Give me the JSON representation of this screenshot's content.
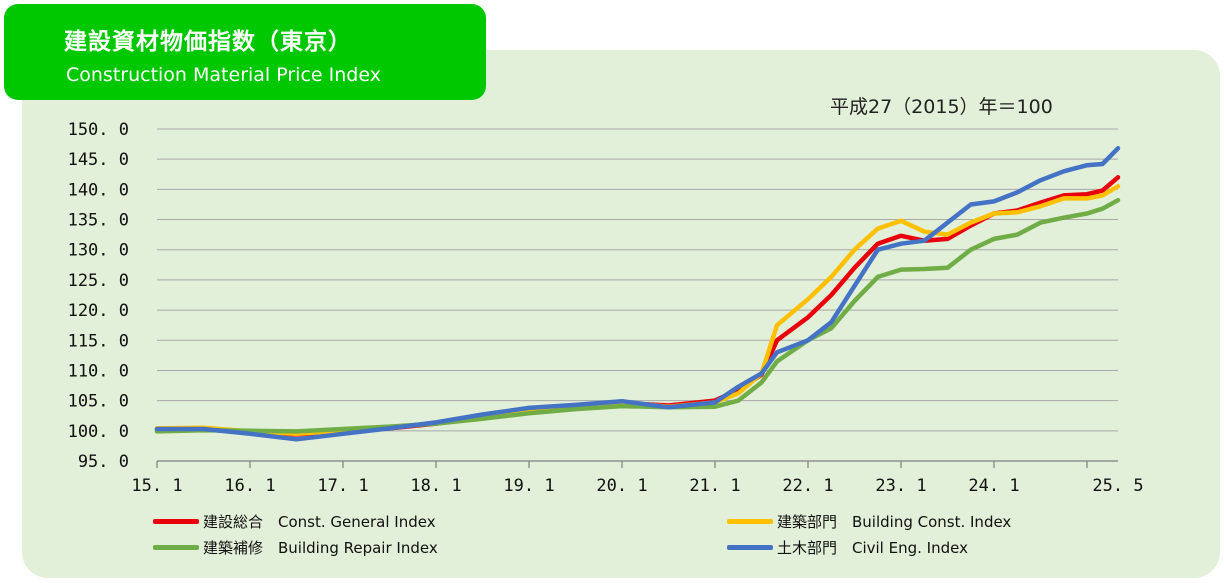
{
  "header": {
    "title_ja": "建設資材物価指数（東京）",
    "title_en": "Construction Material Price Index"
  },
  "base_note": "平成27（2015）年＝100",
  "colors": {
    "background_panel": "#e2efd9",
    "title_box": "#00c800",
    "series": [
      "#e8000b",
      "#ffc000",
      "#70ad47",
      "#4472c4"
    ]
  },
  "legend": {
    "items": [
      {
        "label": "建設総合　Const. General  Index"
      },
      {
        "label": "建築部門　Building Const. Index"
      },
      {
        "label": "建築補修　Building Repair Index"
      },
      {
        "label": "土木部門　Civil Eng. Index"
      }
    ]
  },
  "chart_data": {
    "type": "line",
    "title": "建設資材物価指数（東京）",
    "subtitle": "Construction Material Price Index",
    "xlabel": "",
    "ylabel": "",
    "ylim": [
      95.0,
      150.0
    ],
    "y_ticks": [
      "150.0",
      "145.0",
      "140.0",
      "135.0",
      "130.0",
      "125.0",
      "120.0",
      "115.0",
      "110.0",
      "105.0",
      "100.0",
      "95.0"
    ],
    "x_ticks": [
      "15.1",
      "16.1",
      "17.1",
      "18.1",
      "19.1",
      "20.1",
      "21.1",
      "22.1",
      "23.1",
      "24.1",
      "25.5"
    ],
    "grid": true,
    "legend_position": "bottom",
    "x": [
      "15.1",
      "15.7",
      "16.1",
      "16.7",
      "17.1",
      "17.7",
      "18.1",
      "18.7",
      "19.1",
      "19.7",
      "20.1",
      "20.7",
      "21.1",
      "21.4",
      "21.7",
      "21.9",
      "22.1",
      "22.4",
      "22.7",
      "22.10",
      "23.1",
      "23.4",
      "23.7",
      "23.10",
      "24.1",
      "24.4",
      "24.7",
      "24.10",
      "25.1",
      "25.3",
      "25.5"
    ],
    "series": [
      {
        "name": "建設総合　Const. General  Index",
        "values": [
          100.2,
          100.3,
          99.8,
          99.4,
          99.9,
          100.4,
          101.2,
          102.3,
          103.3,
          104.0,
          104.6,
          104.2,
          105.0,
          106.8,
          109.3,
          115.0,
          118.8,
          122.5,
          127.0,
          131.0,
          132.3,
          131.5,
          131.8,
          134.0,
          136.0,
          136.5,
          137.8,
          139.0,
          139.2,
          139.8,
          142.0
        ]
      },
      {
        "name": "建築部門　Building Const. Index",
        "values": [
          100.4,
          100.5,
          99.9,
          99.5,
          100.0,
          100.5,
          101.3,
          102.4,
          103.4,
          104.1,
          104.7,
          104.0,
          104.7,
          106.2,
          109.5,
          117.5,
          121.8,
          125.5,
          130.0,
          133.5,
          134.8,
          133.0,
          132.5,
          134.5,
          136.0,
          136.2,
          137.2,
          138.5,
          138.5,
          139.0,
          140.5
        ]
      },
      {
        "name": "建築補修　Building Repair Index",
        "values": [
          99.9,
          100.1,
          100.0,
          99.9,
          100.3,
          100.7,
          101.2,
          102.0,
          102.9,
          103.6,
          104.1,
          103.9,
          104.0,
          105.0,
          108.0,
          111.5,
          115.0,
          117.0,
          121.5,
          125.5,
          126.7,
          126.8,
          127.0,
          130.0,
          131.8,
          132.5,
          134.5,
          135.3,
          136.0,
          136.8,
          138.2
        ]
      },
      {
        "name": "土木部門　Civil Eng. Index",
        "values": [
          100.3,
          100.3,
          99.5,
          98.6,
          99.5,
          100.4,
          101.4,
          102.7,
          103.8,
          104.3,
          104.9,
          103.9,
          104.7,
          107.3,
          109.5,
          113.0,
          115.0,
          118.0,
          124.0,
          130.0,
          131.0,
          131.5,
          134.5,
          137.5,
          138.0,
          139.5,
          141.5,
          143.0,
          144.0,
          144.2,
          146.8
        ]
      }
    ]
  }
}
